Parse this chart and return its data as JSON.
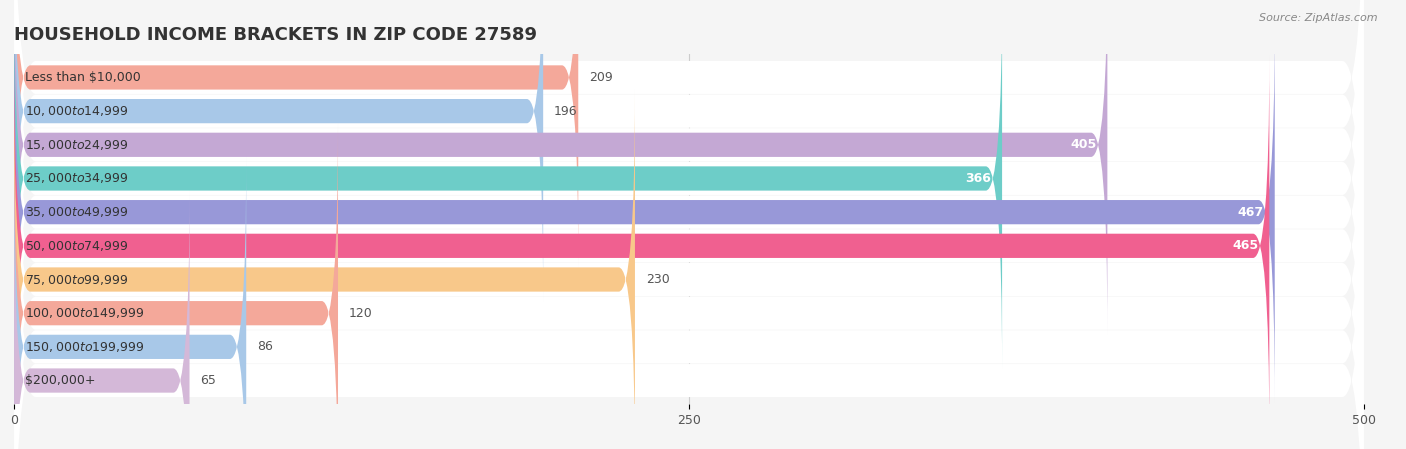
{
  "title": "HOUSEHOLD INCOME BRACKETS IN ZIP CODE 27589",
  "source": "Source: ZipAtlas.com",
  "categories": [
    "Less than $10,000",
    "$10,000 to $14,999",
    "$15,000 to $24,999",
    "$25,000 to $34,999",
    "$35,000 to $49,999",
    "$50,000 to $74,999",
    "$75,000 to $99,999",
    "$100,000 to $149,999",
    "$150,000 to $199,999",
    "$200,000+"
  ],
  "values": [
    209,
    196,
    405,
    366,
    467,
    465,
    230,
    120,
    86,
    65
  ],
  "bar_colors": [
    "#F4A89A",
    "#A8C8E8",
    "#C4A8D4",
    "#6DCDC8",
    "#9898D8",
    "#F06090",
    "#F8C88A",
    "#F4A89A",
    "#A8C8E8",
    "#D4B8D8"
  ],
  "xlim": [
    0,
    500
  ],
  "xticks": [
    0,
    250,
    500
  ],
  "background_color": "#f5f5f5",
  "bar_background_color": "#ffffff",
  "title_fontsize": 13,
  "label_fontsize": 9,
  "value_fontsize": 9
}
